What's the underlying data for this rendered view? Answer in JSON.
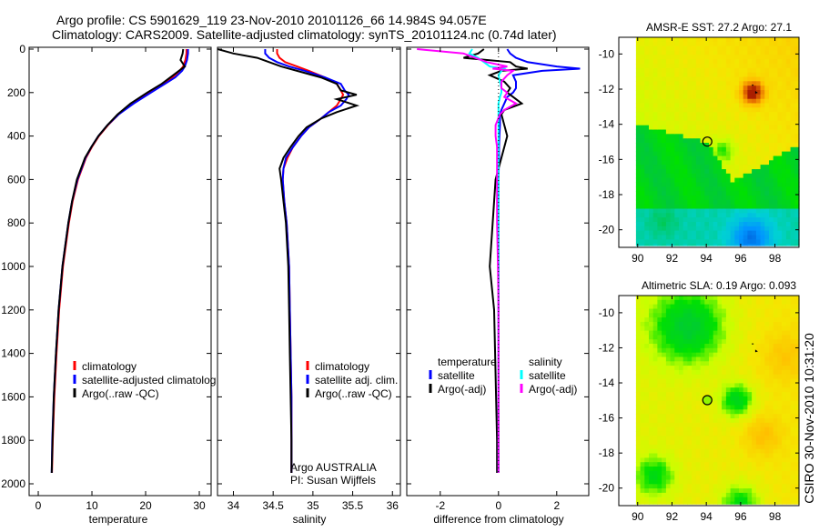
{
  "title": {
    "line1": "Argo profile: CS 5901629_119 23-Nov-2010 20101126_66 14.984S 94.057E",
    "line2": "Climatology: CARS2009. Satellite-adjusted climatology: synTS_20101124.nc (0.74d later)"
  },
  "footer_stamp": "CSIRO 30-Nov-2010 10:31:20",
  "colors": {
    "climatology": "#ff0000",
    "satellite": "#0000ff",
    "argo": "#000000",
    "sal_satellite": "#00ffff",
    "sal_argo": "#ff00ff"
  },
  "chart_data": [
    {
      "type": "line",
      "xlabel": "temperature",
      "ylabel": "",
      "xlim": [
        -1.7,
        32.2
      ],
      "ylim": [
        0,
        2055
      ],
      "y_reversed": true,
      "xticks": [
        "0",
        "10",
        "20",
        "30"
      ],
      "xtick_values": [
        0,
        10,
        20,
        30
      ],
      "yticks": [
        "0",
        "200",
        "400",
        "600",
        "800",
        "1000",
        "1200",
        "1400",
        "1600",
        "1800",
        "2000"
      ],
      "ytick_values": [
        0,
        200,
        400,
        600,
        800,
        1000,
        1200,
        1400,
        1600,
        1800,
        2000
      ],
      "legend": [
        "climatology",
        "satellite-adjusted climatolog",
        "Argo(..raw -QC)"
      ],
      "depth": [
        0,
        20,
        50,
        80,
        100,
        130,
        160,
        200,
        250,
        300,
        350,
        400,
        450,
        500,
        600,
        700,
        800,
        1000,
        1200,
        1400,
        1600,
        1800,
        1950
      ],
      "series": [
        {
          "name": "climatology",
          "color": "#ff0000",
          "values": [
            27.6,
            27.6,
            27.4,
            27.0,
            26.3,
            25,
            23.2,
            20.5,
            17.5,
            15.0,
            13,
            11.3,
            10,
            8.9,
            7.4,
            6.4,
            5.7,
            4.6,
            3.9,
            3.4,
            3.0,
            2.7,
            2.55
          ]
        },
        {
          "name": "satellite-adjusted climatology",
          "color": "#0000ff",
          "values": [
            27.9,
            27.9,
            27.7,
            27.3,
            26.8,
            25.5,
            23.6,
            21,
            17.8,
            15,
            12.9,
            11.2,
            9.9,
            8.8,
            7.3,
            6.3,
            5.6,
            4.5,
            3.8,
            3.3,
            2.9,
            2.6,
            2.5
          ]
        },
        {
          "name": "Argo(..raw -QC)",
          "color": "#000000",
          "values": [
            27.0,
            26.9,
            26.5,
            27.3,
            26.2,
            24.6,
            23,
            20.3,
            17.2,
            14.8,
            12.9,
            11.2,
            9.9,
            8.7,
            7.2,
            6.3,
            5.6,
            4.5,
            3.8,
            3.3,
            2.9,
            2.65,
            2.5
          ]
        }
      ]
    },
    {
      "type": "line",
      "xlabel": "salinity",
      "xlim": [
        33.8,
        36.1
      ],
      "ylim": [
        0,
        2055
      ],
      "y_reversed": true,
      "xticks": [
        "34",
        "34.5",
        "35",
        "35.5",
        "36"
      ],
      "xtick_values": [
        34,
        34.5,
        35,
        35.5,
        36
      ],
      "legend": [
        "climatology",
        "satellite adj. clim.",
        "Argo(..raw -QC)"
      ],
      "annotation": [
        "Argo AUSTRALIA",
        "PI: Susan Wijffels"
      ],
      "depth": [
        0,
        20,
        40,
        60,
        80,
        100,
        130,
        160,
        190,
        210,
        230,
        260,
        290,
        320,
        360,
        400,
        450,
        500,
        550,
        600,
        700,
        800,
        1000,
        1200,
        1400,
        1600,
        1800,
        1950
      ],
      "series": [
        {
          "name": "climatology",
          "color": "#ff0000",
          "values": [
            34.55,
            34.55,
            34.58,
            34.65,
            34.8,
            34.95,
            35.15,
            35.3,
            35.35,
            35.38,
            35.35,
            35.3,
            35.2,
            35.1,
            34.95,
            34.85,
            34.75,
            34.68,
            34.63,
            34.62,
            34.64,
            34.67,
            34.7,
            34.71,
            34.72,
            34.73,
            34.73,
            34.73
          ]
        },
        {
          "name": "satellite adj. clim.",
          "color": "#0000ff",
          "values": [
            34.4,
            34.4,
            34.45,
            34.55,
            34.7,
            34.9,
            35.15,
            35.35,
            35.4,
            35.45,
            35.42,
            35.35,
            35.2,
            35.1,
            34.95,
            34.85,
            34.75,
            34.66,
            34.63,
            34.62,
            34.64,
            34.67,
            34.7,
            34.71,
            34.72,
            34.73,
            34.73,
            34.73
          ]
        },
        {
          "name": "Argo(..raw -QC)",
          "color": "#000000",
          "values": [
            33.8,
            34.0,
            34.3,
            34.45,
            34.6,
            34.8,
            35.1,
            35.3,
            35.35,
            35.55,
            35.3,
            35.55,
            35.3,
            35.1,
            34.92,
            34.82,
            34.72,
            34.63,
            34.58,
            34.6,
            34.63,
            34.66,
            34.69,
            34.7,
            34.71,
            34.72,
            34.73,
            34.73
          ]
        }
      ]
    },
    {
      "type": "line",
      "xlabel": "difference from climatology",
      "xlim": [
        -3.15,
        3.1
      ],
      "ylim": [
        0,
        2055
      ],
      "y_reversed": true,
      "xticks": [
        "-2",
        "0",
        "2"
      ],
      "xtick_values": [
        -2,
        0,
        2
      ],
      "legend_headers": [
        "temperature",
        "salinity"
      ],
      "legend": [
        "satellite",
        "Argo(-adj)",
        "satellite",
        "Argo(-adj)"
      ],
      "depth": [
        0,
        20,
        40,
        60,
        80,
        90,
        100,
        120,
        150,
        180,
        200,
        220,
        250,
        280,
        300,
        350,
        400,
        450,
        500,
        600,
        800,
        1000,
        1200,
        1500,
        1800,
        1950
      ],
      "series": [
        {
          "name": "temperature satellite",
          "color": "#0000ff",
          "values": [
            0.3,
            0.4,
            0.6,
            1.0,
            2.0,
            2.8,
            1.5,
            0.5,
            0.6,
            0.6,
            0.5,
            0.3,
            0.2,
            0.1,
            0.05,
            0.05,
            0.03,
            0.02,
            0.02,
            0,
            0,
            0,
            0,
            0,
            0,
            0
          ]
        },
        {
          "name": "temperature Argo(-adj)",
          "color": "#000000",
          "values": [
            -0.5,
            -0.7,
            -1.2,
            0.4,
            0.6,
            1.0,
            0.1,
            -0.3,
            0.2,
            0.4,
            0.3,
            0.5,
            0.8,
            0.2,
            0.1,
            0.2,
            0.3,
            0.2,
            0.1,
            -0.1,
            -0.2,
            -0.3,
            -0.15,
            -0.1,
            -0.05,
            -0.05
          ]
        },
        {
          "name": "salinity satellite",
          "color": "#00ffff",
          "values": [
            -0.9,
            -1.0,
            -0.7,
            -0.5,
            -0.3,
            0.2,
            0.1,
            0,
            0.05,
            0.1,
            0.1,
            0.05,
            0,
            0,
            0,
            0,
            0,
            0,
            0,
            0,
            0,
            0,
            0,
            0,
            0,
            0
          ]
        },
        {
          "name": "salinity Argo(-adj)",
          "color": "#ff00ff",
          "values": [
            -2.8,
            -1.2,
            -0.8,
            -0.4,
            0.3,
            -0.2,
            0.5,
            0.3,
            0.1,
            0.1,
            0.3,
            0.2,
            0.6,
            0.2,
            0.05,
            -0.1,
            -0.1,
            -0.05,
            -0.05,
            -0.05,
            -0.05,
            -0.02,
            0,
            0,
            0,
            0
          ]
        }
      ]
    },
    {
      "type": "heatmap",
      "title": "AMSR-E SST: 27.2 Argo: 27.1",
      "xlim": [
        88.9,
        99.4
      ],
      "ylim": [
        -21,
        -9.05
      ],
      "xticks": [
        "90",
        "92",
        "94",
        "96",
        "98"
      ],
      "xtick_values": [
        90,
        92,
        94,
        96,
        98
      ],
      "yticks": [
        "-10",
        "-12",
        "-14",
        "-16",
        "-18",
        "-20"
      ],
      "ytick_values": [
        -10,
        -12,
        -14,
        -16,
        -18,
        -20
      ],
      "argo_position": [
        94.057,
        -14.984
      ]
    },
    {
      "type": "heatmap",
      "title": "Altimetric SLA: 0.19 Argo: 0.093",
      "xlim": [
        88.9,
        99.4
      ],
      "ylim": [
        -21,
        -9.02
      ],
      "xticks": [
        "90",
        "92",
        "94",
        "96",
        "98"
      ],
      "xtick_values": [
        90,
        92,
        94,
        96,
        98
      ],
      "yticks": [
        "-10",
        "-12",
        "-14",
        "-16",
        "-18",
        "-20"
      ],
      "ytick_values": [
        -10,
        -12,
        -14,
        -16,
        -18,
        -20
      ],
      "argo_position": [
        94.057,
        -14.984
      ]
    }
  ]
}
